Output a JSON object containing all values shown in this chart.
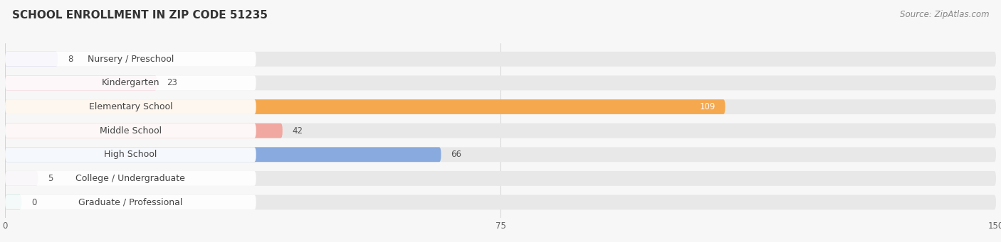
{
  "title": "SCHOOL ENROLLMENT IN ZIP CODE 51235",
  "source": "Source: ZipAtlas.com",
  "categories": [
    "Nursery / Preschool",
    "Kindergarten",
    "Elementary School",
    "Middle School",
    "High School",
    "College / Undergraduate",
    "Graduate / Professional"
  ],
  "values": [
    8,
    23,
    109,
    42,
    66,
    5,
    0
  ],
  "bar_colors": [
    "#b0b0e0",
    "#f4a0b8",
    "#f5a84e",
    "#f0a8a0",
    "#88aade",
    "#c8a8d8",
    "#7ec8c0"
  ],
  "xlim": [
    0,
    150
  ],
  "xticks": [
    0,
    75,
    150
  ],
  "background_color": "#f7f7f7",
  "bar_bg_color": "#e8e8e8",
  "title_fontsize": 11,
  "source_fontsize": 8.5,
  "value_fontsize": 8.5,
  "category_fontsize": 9
}
